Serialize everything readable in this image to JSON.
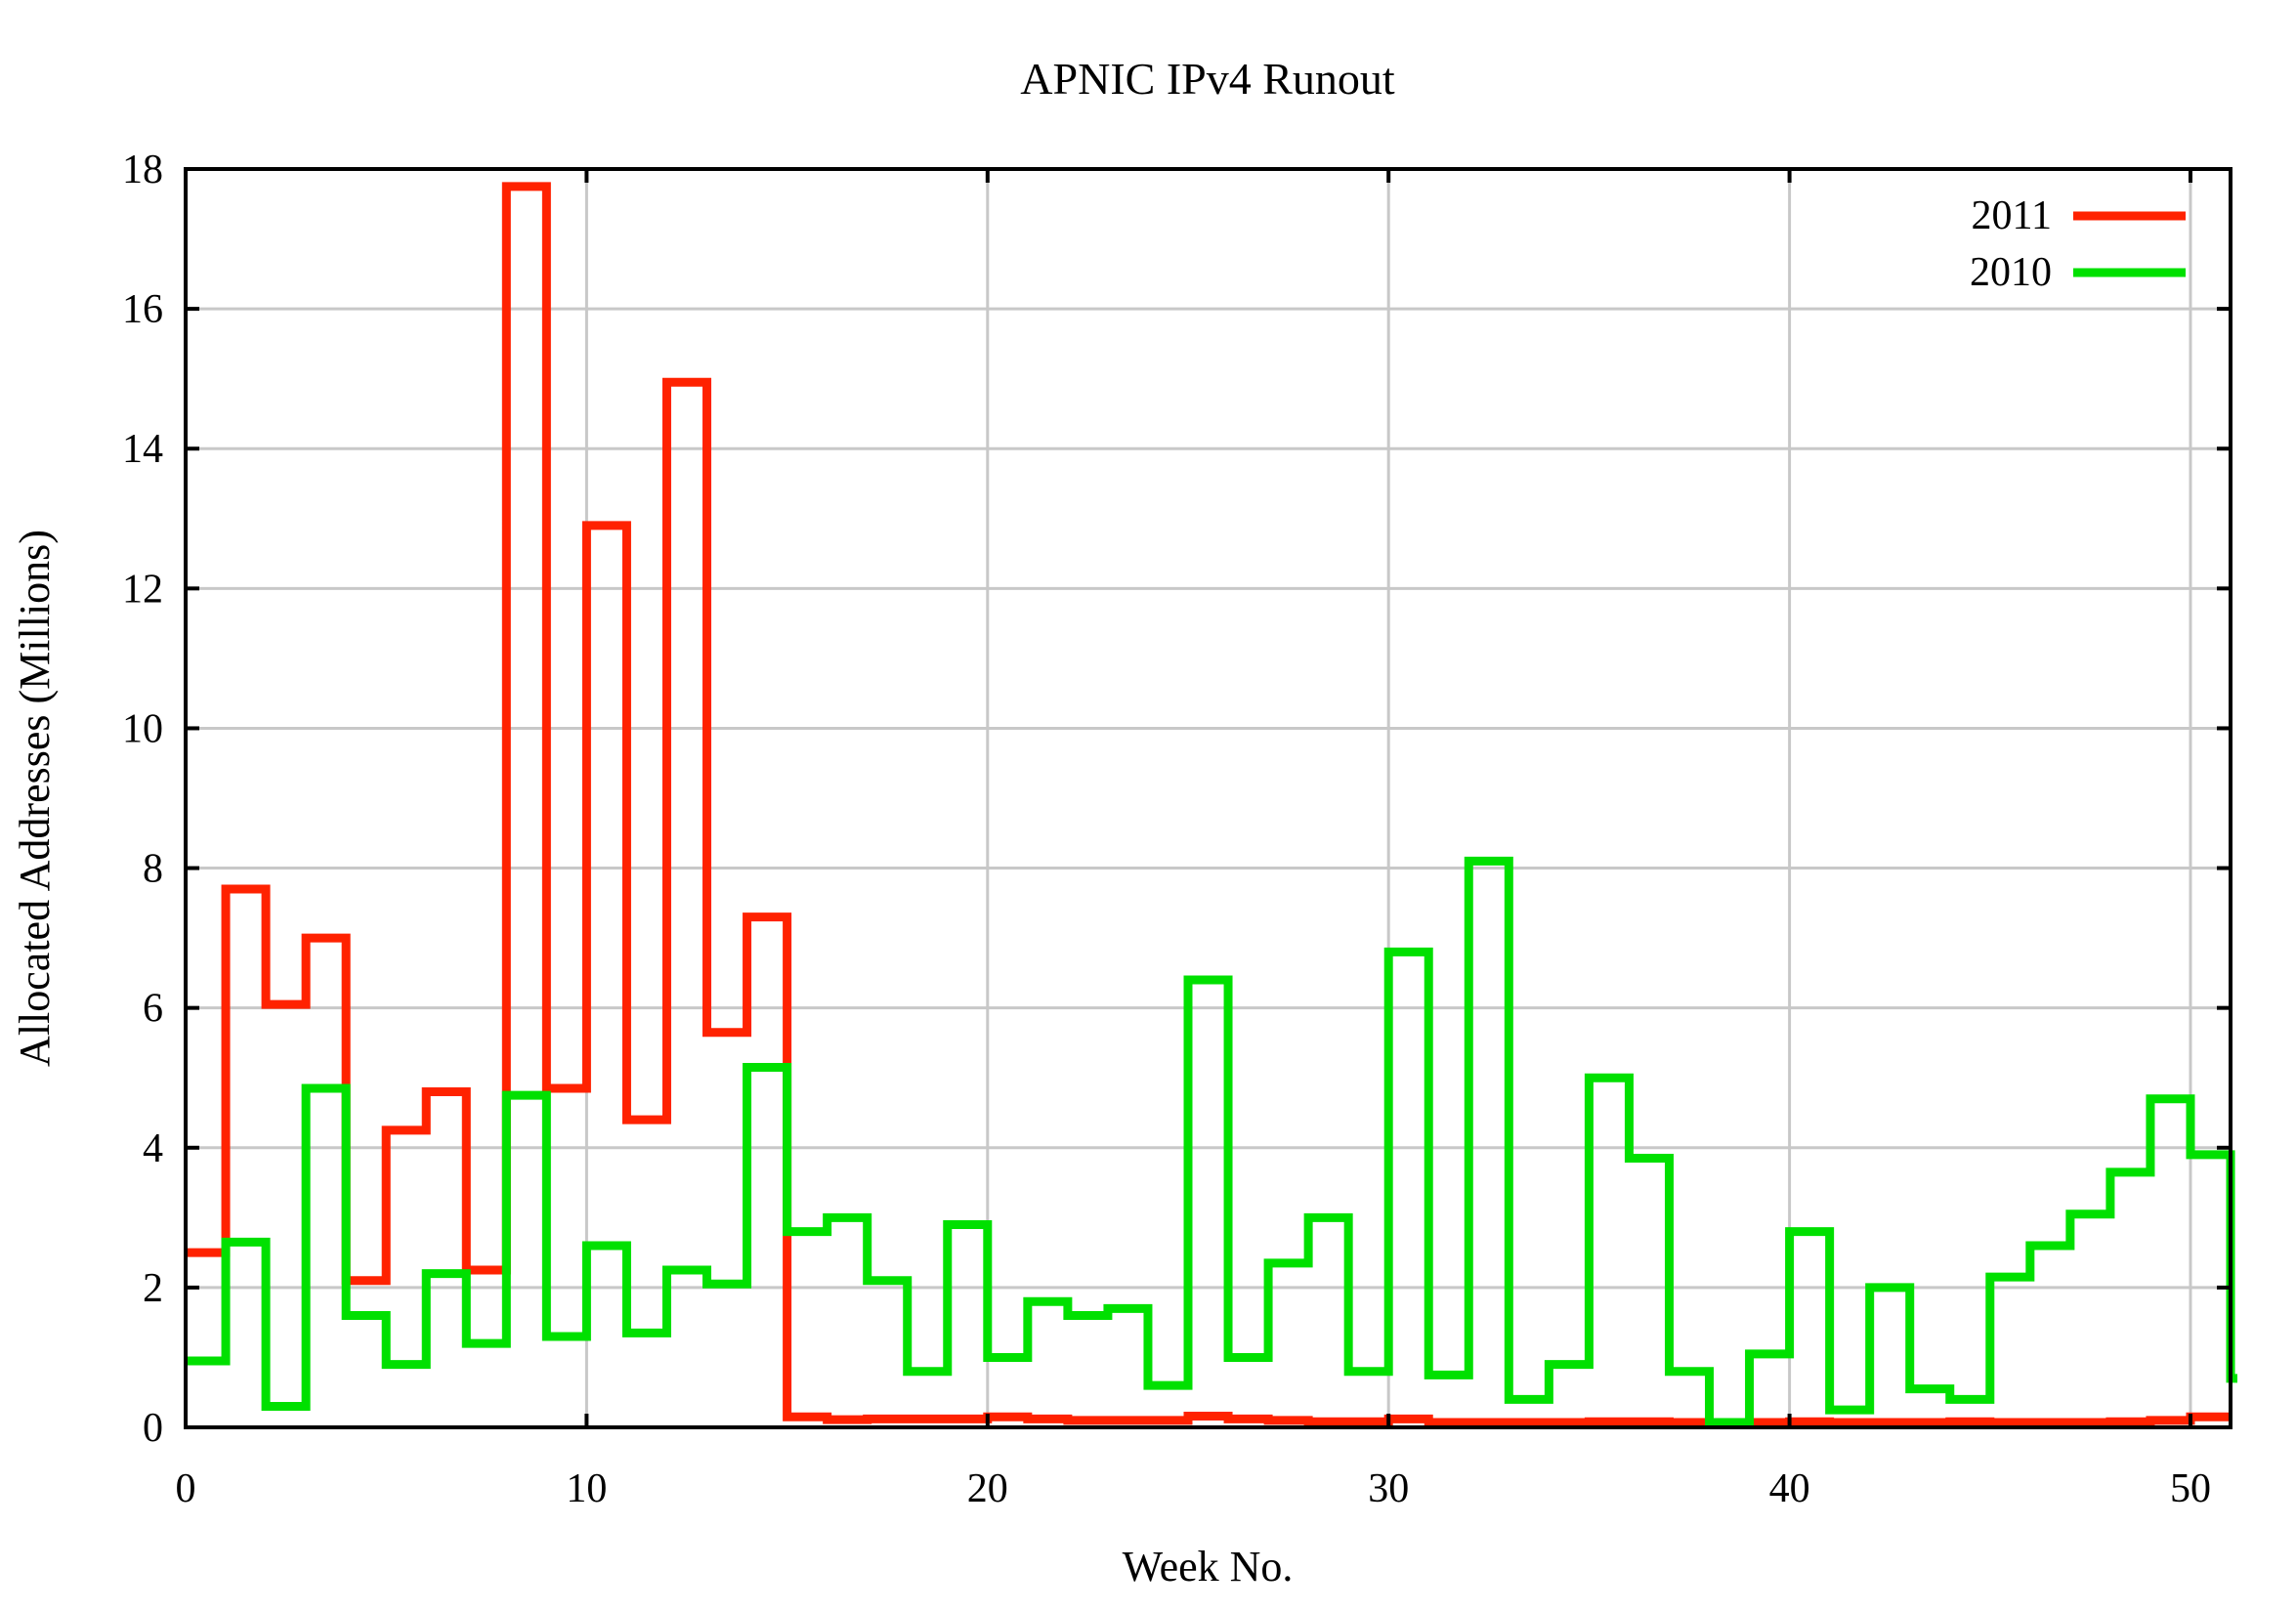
{
  "title": "APNIC IPv4 Runout",
  "axes": {
    "x": {
      "label": "Week No.",
      "tick_values": [
        0,
        10,
        20,
        30,
        40,
        50
      ],
      "min": 0,
      "max": 51
    },
    "y": {
      "label": "Allocated Addresses (Millions)",
      "tick_values": [
        0,
        2,
        4,
        6,
        8,
        10,
        12,
        14,
        16,
        18
      ],
      "min": 0,
      "max": 18
    }
  },
  "legend": [
    {
      "label": "2011",
      "color": "#ff2200"
    },
    {
      "label": "2010",
      "color": "#00e000"
    }
  ],
  "colors": {
    "series_2011": "#ff2200",
    "series_2010": "#00e000",
    "grid": "#c8c8c8",
    "frame": "#000000",
    "background": "#ffffff"
  },
  "chart_data": {
    "type": "line",
    "style": "steps",
    "title": "APNIC IPv4 Runout",
    "xlabel": "Week No.",
    "ylabel": "Allocated Addresses (Millions)",
    "xlim": [
      0,
      51
    ],
    "ylim": [
      0,
      18
    ],
    "grid": true,
    "legend_position": "top-right",
    "x_unit": "week_index_starting_at_0",
    "series": [
      {
        "name": "2011",
        "color": "#ff2200",
        "values": [
          2.5,
          7.7,
          6.05,
          7.0,
          2.1,
          4.25,
          4.8,
          2.25,
          17.75,
          4.85,
          12.9,
          4.4,
          14.95,
          5.65,
          7.3,
          0.15,
          0.11,
          0.12,
          0.12,
          0.12,
          0.15,
          0.12,
          0.1,
          0.1,
          0.1,
          0.16,
          0.12,
          0.1,
          0.08,
          0.08,
          0.12,
          0.07,
          0.07,
          0.07,
          0.07,
          0.08,
          0.08,
          0.07,
          0.07,
          0.07,
          0.08,
          0.07,
          0.07,
          0.07,
          0.08,
          0.07,
          0.07,
          0.07,
          0.08,
          0.1,
          0.15
        ]
      },
      {
        "name": "2010",
        "color": "#00e000",
        "values": [
          0.95,
          2.65,
          0.3,
          4.85,
          1.6,
          0.9,
          2.2,
          1.2,
          4.75,
          1.3,
          2.6,
          1.35,
          2.25,
          2.05,
          5.15,
          2.8,
          3.0,
          2.1,
          0.8,
          2.9,
          1.0,
          1.8,
          1.6,
          1.7,
          0.6,
          6.4,
          1.0,
          2.35,
          3.0,
          0.8,
          6.8,
          0.75,
          8.1,
          0.4,
          0.9,
          5.0,
          3.85,
          0.8,
          0.07,
          1.05,
          2.8,
          0.25,
          2.0,
          0.55,
          0.4,
          2.15,
          2.6,
          3.05,
          3.65,
          4.7,
          3.9,
          0.7
        ]
      }
    ]
  }
}
